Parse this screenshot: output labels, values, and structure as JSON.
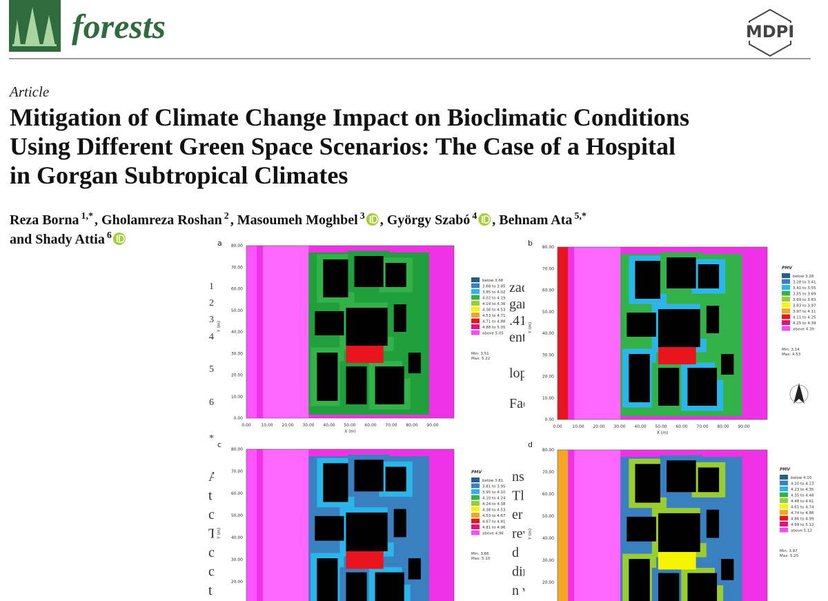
{
  "header": {
    "journal": "forests",
    "publisher": "MDPI"
  },
  "article": {
    "type": "Article",
    "title_lines": [
      "Mitigation of Climate Change Impact on Bioclimatic Conditions",
      "Using Different Green Space Scenarios: The Case of a Hospital",
      "in Gorgan Subtropical Climates"
    ],
    "author_lines": [
      [
        {
          "name": "Reza Borna",
          "sup": "1,*",
          "orcid": false
        },
        {
          "name": ", Gholamreza Roshan",
          "sup": "2",
          "orcid": false
        },
        {
          "name": ", Masoumeh Moghbel",
          "sup": "3",
          "orcid": true
        },
        {
          "name": ", György Szabó",
          "sup": "4",
          "orcid": true
        },
        {
          "name": ", Behnam Ata",
          "sup": "5,*",
          "orcid": false
        }
      ],
      [
        {
          "name": "and Shady Attia",
          "sup": "6",
          "orcid": true
        }
      ]
    ]
  },
  "background_text": {
    "line_numbers": [
      "1",
      "2",
      "3",
      "4",
      "5",
      "6",
      "*"
    ],
    "fragments_right": [
      "zac",
      "gar",
      ".41",
      "ent",
      "lop",
      "Fac"
    ],
    "abstract_left": [
      "A",
      "t",
      "c",
      "T",
      "c",
      "c",
      "t"
    ],
    "abstract_right": [
      "ns",
      "Tl",
      "er",
      "rev",
      "d",
      "dir",
      "n w"
    ]
  },
  "figure": {
    "panels": [
      {
        "label": "a",
        "y_ticks": [
          "80.00",
          "70.00",
          "60.00",
          "50.00",
          "40.00",
          "30.00",
          "20.00",
          "10.00",
          "0.00"
        ],
        "x_ticks": [
          "0.00",
          "10.00",
          "20.00",
          "30.00",
          "40.00",
          "50.00",
          "60.00",
          "70.00",
          "80.00",
          "90.00"
        ],
        "x_label": "X (m)",
        "y_label": "Y (m)",
        "legend": [
          "below 3.68",
          "3.68 to 3.85",
          "3.85 to 4.02",
          "4.02 to 4.19",
          "4.19 to 4.36",
          "4.36 to 4.53",
          "4.53 to 4.71",
          "4.71 to 4.88",
          "4.88 to 5.05",
          "above 5.05"
        ],
        "min": "Min: 3.51",
        "max": "Max: 5.22"
      },
      {
        "label": "b",
        "y_ticks": [
          "80.00",
          "70.00",
          "60.00",
          "50.00",
          "40.00",
          "30.00",
          "20.00",
          "10.00",
          "0.00"
        ],
        "x_ticks": [
          "0.00",
          "10.00",
          "20.00",
          "30.00",
          "40.00",
          "50.00",
          "60.00",
          "70.00",
          "80.00",
          "90.00"
        ],
        "x_label": "X (m)",
        "y_label": "Y (m)",
        "legend_title": "PMV",
        "legend": [
          "below 3.28",
          "3.28 to 3.41",
          "3.41 to 3.55",
          "3.55 to 3.69",
          "3.69 to 3.83",
          "3.83 to 3.97",
          "3.97 to 4.11",
          "4.11 to 4.25",
          "4.25 to 4.39",
          "above 4.39"
        ],
        "min": "Min: 3.14",
        "max": "Max: 4.53"
      },
      {
        "label": "c",
        "y_ticks": [
          "80.00",
          "70.00",
          "60.00",
          "50.00",
          "40.00",
          "30.00",
          "20.00",
          "10.00"
        ],
        "y_label": "Y (m)",
        "legend_title": "PMV",
        "legend": [
          "below 3.81",
          "3.81 to 3.95",
          "3.95 to 4.10",
          "4.10 to 4.24",
          "4.24 to 4.38",
          "4.38 to 4.53",
          "4.53 to 4.67",
          "4.67 to 4.81",
          "4.81 to 4.96",
          "above 4.96"
        ],
        "min": "Min: 3.66",
        "max": "Max: 5.10"
      },
      {
        "label": "d",
        "y_ticks": [
          "80.00",
          "70.00",
          "60.00",
          "50.00",
          "40.00",
          "30.00",
          "20.00",
          "10.00"
        ],
        "y_label": "Y (m)",
        "legend_title": "PMV",
        "legend": [
          "below 4.10",
          "4.10 to 4.23",
          "4.23 to 4.35",
          "4.35 to 4.48",
          "4.48 to 4.61",
          "4.61 to 4.74",
          "4.74 to 4.86",
          "4.86 to 4.99",
          "4.99 to 5.12",
          "above 5.12"
        ],
        "min": "Min: 3.97",
        "max": "Max: 5.25"
      }
    ]
  }
}
